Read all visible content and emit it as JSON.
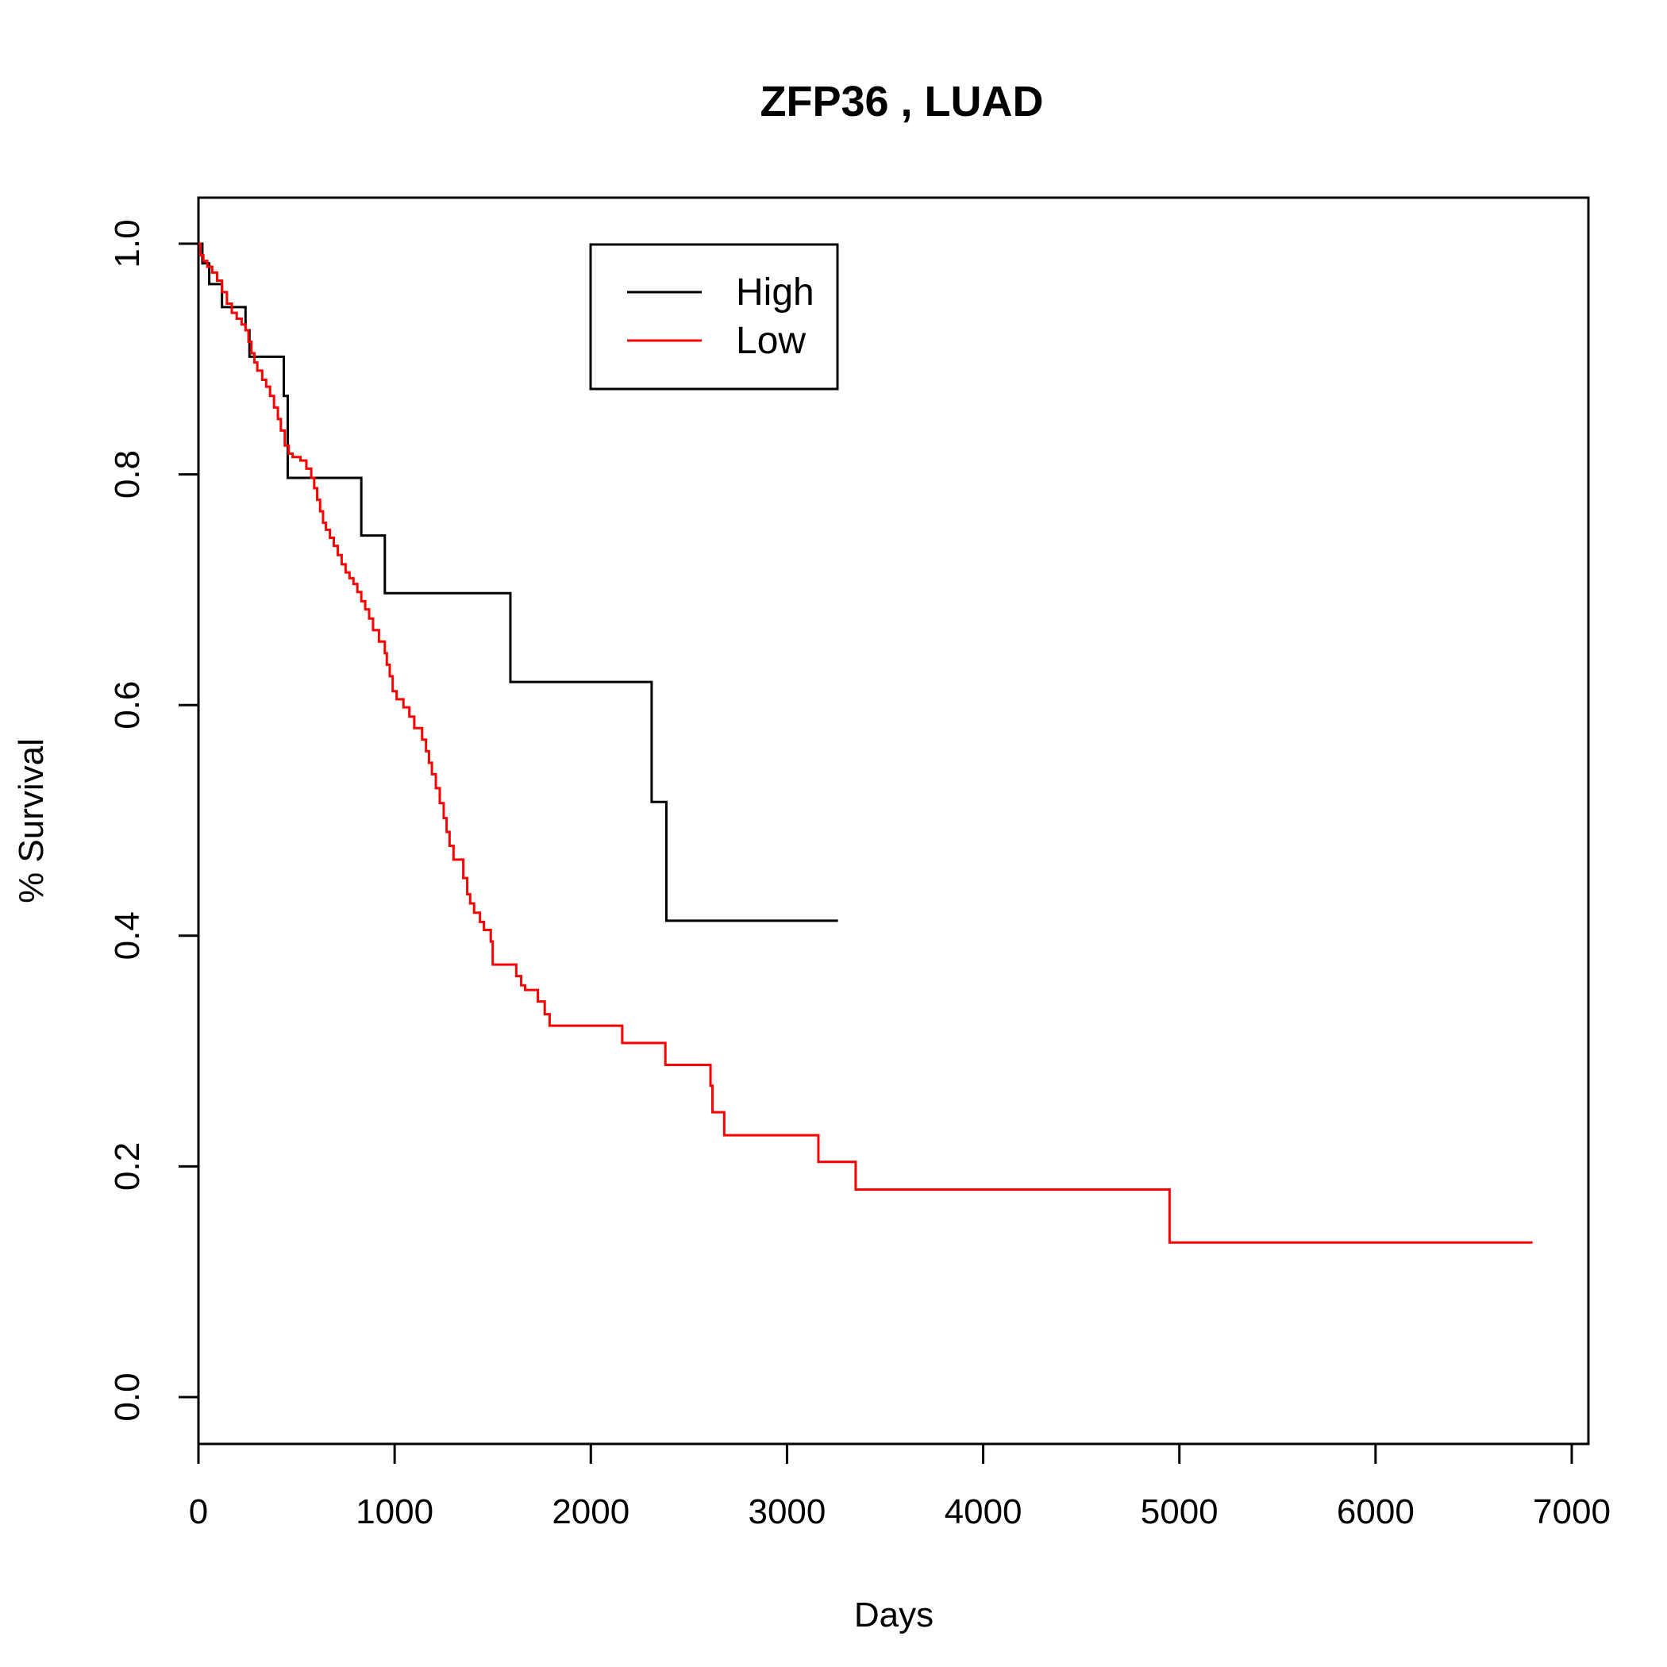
{
  "chart_data": {
    "type": "line",
    "title": "ZFP36 ,  LUAD",
    "xlabel": "Days",
    "ylabel": "% Survival",
    "xlim": [
      0,
      7000
    ],
    "ylim": [
      0,
      1
    ],
    "x_ticks": [
      0,
      1000,
      2000,
      3000,
      4000,
      5000,
      6000,
      7000
    ],
    "x_tick_labels": [
      "0",
      "1000",
      "2000",
      "3000",
      "4000",
      "5000",
      "6000",
      "7000"
    ],
    "y_ticks": [
      0,
      0.2,
      0.4,
      0.6,
      0.8,
      1
    ],
    "y_tick_labels": [
      "0.0",
      "0.2",
      "0.4",
      "0.6",
      "0.8",
      "1.0"
    ],
    "grid": false,
    "legend_position": "top-center",
    "series": [
      {
        "name": "High",
        "color": "#000000",
        "step": true,
        "x": [
          0,
          20,
          55,
          120,
          240,
          260,
          435,
          455,
          830,
          950,
          1590,
          2310,
          2385,
          3260
        ],
        "y": [
          1.0,
          0.983,
          0.965,
          0.945,
          0.925,
          0.902,
          0.868,
          0.797,
          0.747,
          0.697,
          0.62,
          0.516,
          0.413,
          0.413
        ]
      },
      {
        "name": "Low",
        "color": "#ff0000",
        "step": true,
        "x": [
          0,
          10,
          25,
          45,
          70,
          95,
          120,
          145,
          170,
          195,
          220,
          240,
          255,
          270,
          285,
          300,
          325,
          345,
          365,
          385,
          405,
          420,
          440,
          460,
          480,
          520,
          550,
          575,
          590,
          605,
          620,
          635,
          650,
          670,
          690,
          710,
          730,
          750,
          770,
          790,
          810,
          830,
          850,
          870,
          890,
          920,
          950,
          960,
          975,
          990,
          1010,
          1045,
          1075,
          1100,
          1140,
          1160,
          1175,
          1190,
          1210,
          1230,
          1250,
          1265,
          1280,
          1300,
          1350,
          1370,
          1385,
          1405,
          1435,
          1455,
          1490,
          1500,
          1620,
          1645,
          1665,
          1730,
          1765,
          1790,
          2160,
          2380,
          2610,
          2620,
          2680,
          3160,
          3350,
          4950,
          6800
        ],
        "y": [
          1.0,
          0.99,
          0.985,
          0.98,
          0.975,
          0.968,
          0.958,
          0.948,
          0.94,
          0.935,
          0.93,
          0.925,
          0.915,
          0.905,
          0.897,
          0.89,
          0.882,
          0.876,
          0.868,
          0.858,
          0.848,
          0.838,
          0.825,
          0.818,
          0.815,
          0.812,
          0.805,
          0.797,
          0.788,
          0.778,
          0.768,
          0.758,
          0.752,
          0.745,
          0.738,
          0.73,
          0.722,
          0.715,
          0.71,
          0.705,
          0.698,
          0.69,
          0.683,
          0.675,
          0.665,
          0.655,
          0.645,
          0.635,
          0.625,
          0.612,
          0.605,
          0.598,
          0.59,
          0.58,
          0.57,
          0.56,
          0.55,
          0.54,
          0.528,
          0.515,
          0.502,
          0.49,
          0.478,
          0.466,
          0.45,
          0.436,
          0.428,
          0.42,
          0.412,
          0.405,
          0.395,
          0.375,
          0.365,
          0.357,
          0.353,
          0.343,
          0.332,
          0.322,
          0.307,
          0.288,
          0.27,
          0.247,
          0.227,
          0.204,
          0.18,
          0.134,
          0.134
        ]
      }
    ]
  }
}
